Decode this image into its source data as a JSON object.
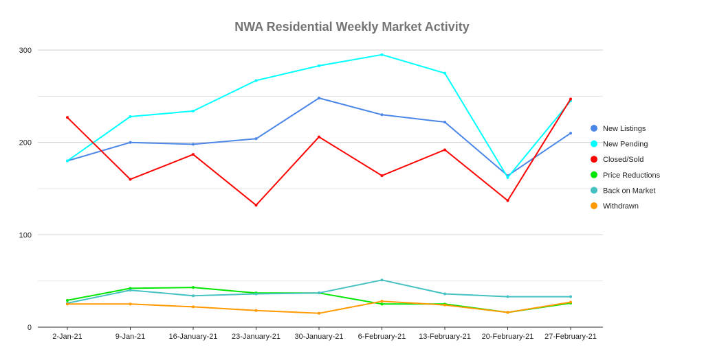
{
  "chart_data": {
    "type": "line",
    "title": "NWA Residential Weekly Market Activity",
    "xlabel": "",
    "ylabel": "",
    "ylim": [
      0,
      300
    ],
    "yticks": [
      0,
      100,
      200,
      300
    ],
    "grid": true,
    "legend_position": "right",
    "categories": [
      "2-Jan-21",
      "9-Jan-21",
      "16-January-21",
      "23-January-21",
      "30-January-21",
      "6-February-21",
      "13-February-21",
      "20-February-21",
      "27-February-21"
    ],
    "series": [
      {
        "name": "New Listings",
        "color": "#4a86e8",
        "values": [
          180,
          200,
          198,
          204,
          248,
          230,
          222,
          164,
          210
        ]
      },
      {
        "name": "New Pending",
        "color": "#00ffff",
        "values": [
          180,
          228,
          234,
          267,
          283,
          295,
          275,
          162,
          245
        ]
      },
      {
        "name": "Closed/Sold",
        "color": "#ff0000",
        "values": [
          227,
          160,
          187,
          132,
          206,
          164,
          192,
          137,
          247
        ]
      },
      {
        "name": "Price Reductions",
        "color": "#00e600",
        "values": [
          29,
          42,
          43,
          37,
          37,
          25,
          25,
          16,
          26
        ]
      },
      {
        "name": "Back on Market",
        "color": "#45c1c1",
        "values": [
          26,
          40,
          34,
          36,
          37,
          51,
          36,
          33,
          33
        ]
      },
      {
        "name": "Withdrawn",
        "color": "#ff9900",
        "values": [
          25,
          25,
          22,
          18,
          15,
          28,
          24,
          16,
          27
        ]
      }
    ]
  }
}
